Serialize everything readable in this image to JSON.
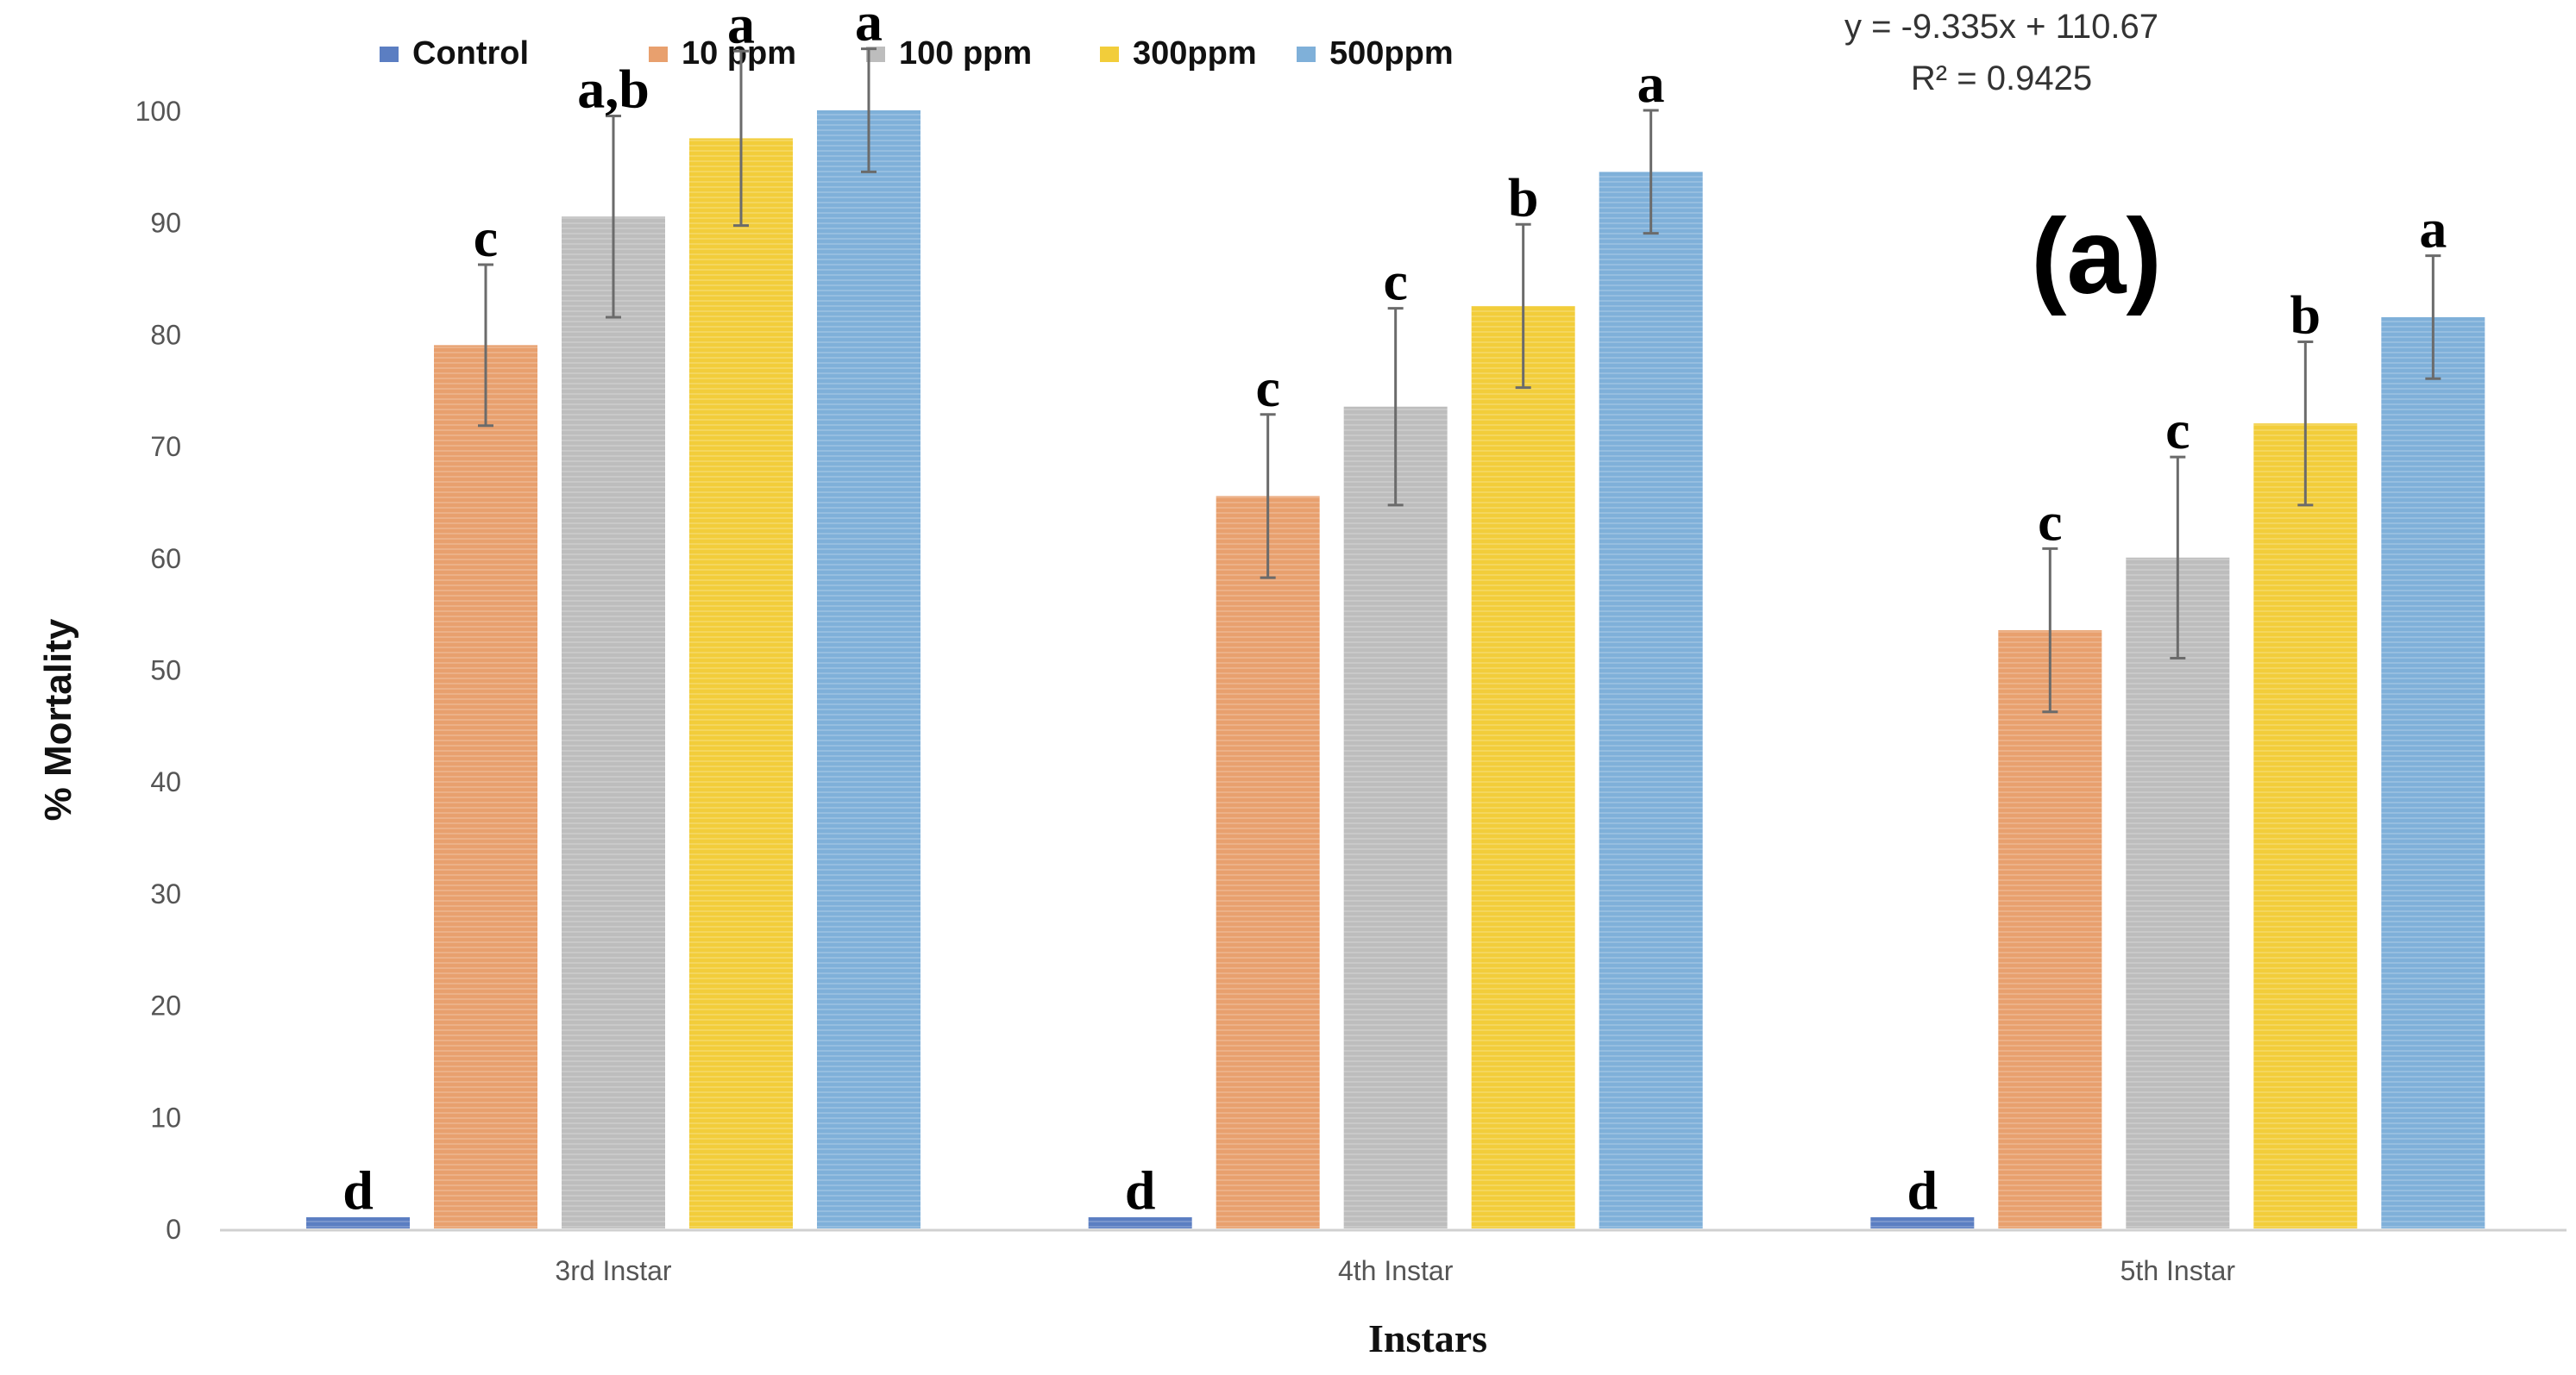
{
  "chart_data": {
    "type": "bar",
    "panel_label": "(a)",
    "xlabel": "Instars",
    "ylabel": "% Mortality",
    "ylim": [
      0,
      100
    ],
    "yticks": [
      0,
      10,
      20,
      30,
      40,
      50,
      60,
      70,
      80,
      90,
      100
    ],
    "grid": false,
    "legend_position": "top-left",
    "categories": [
      "3rd Instar",
      "4th Instar",
      "5th Instar"
    ],
    "series": [
      {
        "name": "Control",
        "color": "#5b7ec2",
        "values": [
          1,
          1,
          1
        ],
        "errors": [
          0,
          0,
          0
        ],
        "letters": [
          "d",
          "d",
          "d"
        ]
      },
      {
        "name": "10 ppm",
        "color": "#e8a06e",
        "values": [
          79,
          65.5,
          53.5
        ],
        "errors": [
          7.2,
          7.3,
          7.3
        ],
        "letters": [
          "c",
          "c",
          "c"
        ]
      },
      {
        "name": "100 ppm",
        "color": "#bdbdbd",
        "values": [
          90.5,
          73.5,
          60
        ],
        "errors": [
          9,
          8.8,
          9
        ],
        "letters": [
          "a,b",
          "c",
          "c"
        ]
      },
      {
        "name": "300ppm",
        "color": "#f2cd3a",
        "values": [
          97.5,
          82.5,
          72
        ],
        "errors": [
          7.8,
          7.3,
          7.3
        ],
        "letters": [
          "a",
          "b",
          "b"
        ]
      },
      {
        "name": "500ppm",
        "color": "#7fb0d9",
        "values": [
          100,
          94.5,
          81.5
        ],
        "errors": [
          5.5,
          5.5,
          5.5
        ],
        "letters": [
          "a",
          "a",
          "a"
        ]
      }
    ],
    "annotations": {
      "equation": "y = -9.335x + 110.67",
      "r_squared": "R² = 0.9425"
    }
  }
}
